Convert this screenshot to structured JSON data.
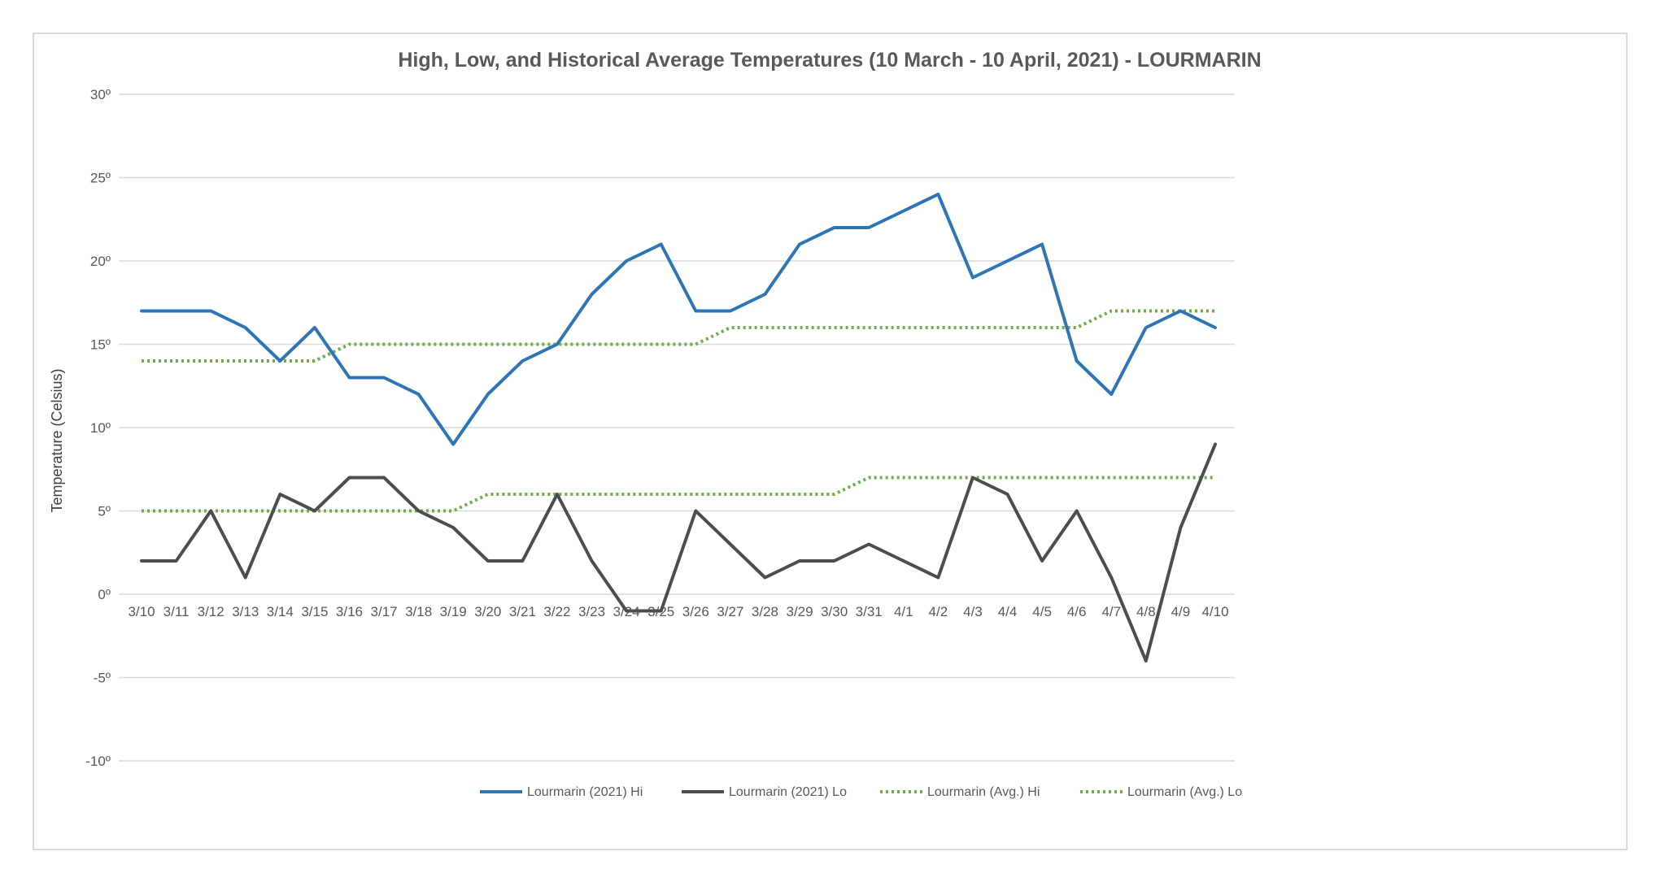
{
  "chart_data": {
    "type": "line",
    "title": "High, Low, and Historical Average Temperatures (10 March - 10 April, 2021) - LOURMARIN",
    "xlabel": "",
    "ylabel": "Temperature  (Celsius)",
    "ylim": [
      -10,
      30
    ],
    "yticks": [
      30,
      25,
      20,
      15,
      10,
      5,
      0,
      -5,
      -10
    ],
    "ytick_labels": [
      "30º",
      "25º",
      "20º",
      "15º",
      "10º",
      "5º",
      "0º",
      "-5º",
      "-10º"
    ],
    "grid": "horizontal",
    "legend_position": "bottom",
    "categories": [
      "3/10",
      "3/11",
      "3/12",
      "3/13",
      "3/14",
      "3/15",
      "3/16",
      "3/17",
      "3/18",
      "3/19",
      "3/20",
      "3/21",
      "3/22",
      "3/23",
      "3/24",
      "3/25",
      "3/26",
      "3/27",
      "3/28",
      "3/29",
      "3/30",
      "3/31",
      "4/1",
      "4/2",
      "4/3",
      "4/4",
      "4/5",
      "4/6",
      "4/7",
      "4/8",
      "4/9",
      "4/10"
    ],
    "series": [
      {
        "name": "Lourmarin (2021) Hi",
        "color": "#2e75b6",
        "style": "solid",
        "values": [
          17,
          17,
          17,
          16,
          14,
          16,
          13,
          13,
          12,
          9,
          12,
          14,
          15,
          18,
          20,
          21,
          17,
          17,
          18,
          21,
          22,
          22,
          23,
          24,
          19,
          20,
          21,
          14,
          12,
          16,
          17,
          16
        ]
      },
      {
        "name": "Lourmarin (2021) Lo",
        "color": "#4d4d4d",
        "style": "solid",
        "values": [
          2,
          2,
          5,
          1,
          6,
          5,
          7,
          7,
          5,
          4,
          2,
          2,
          6,
          2,
          -1,
          -1,
          5,
          3,
          1,
          2,
          2,
          3,
          2,
          1,
          7,
          6,
          2,
          5,
          1,
          -4,
          4,
          9
        ]
      },
      {
        "name": "Lourmarin (Avg.) Hi",
        "color": "#70ad47",
        "style": "dotted",
        "values": [
          14,
          14,
          14,
          14,
          14,
          14,
          15,
          15,
          15,
          15,
          15,
          15,
          15,
          15,
          15,
          15,
          15,
          16,
          16,
          16,
          16,
          16,
          16,
          16,
          16,
          16,
          16,
          16,
          17,
          17,
          17,
          17
        ]
      },
      {
        "name": "Lourmarin (Avg.) Lo",
        "color": "#70ad47",
        "style": "dotted",
        "values": [
          5,
          5,
          5,
          5,
          5,
          5,
          5,
          5,
          5,
          5,
          6,
          6,
          6,
          6,
          6,
          6,
          6,
          6,
          6,
          6,
          6,
          7,
          7,
          7,
          7,
          7,
          7,
          7,
          7,
          7,
          7,
          7
        ]
      }
    ]
  }
}
